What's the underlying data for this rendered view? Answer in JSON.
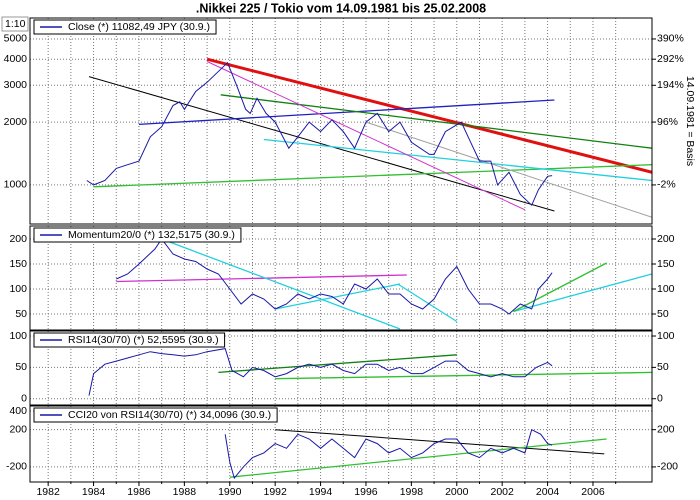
{
  "title": ".Nikkei 225 / Tokio vom 14.09.1981 bis 25.02.2008",
  "x_axis": {
    "xlim": [
      1981.2,
      2008.6
    ],
    "xticks": [
      1982,
      1984,
      1986,
      1988,
      1990,
      1992,
      1994,
      1996,
      1998,
      2000,
      2002,
      2004,
      2006
    ],
    "xminor": [
      1983,
      1985,
      1987,
      1989,
      1991,
      1993,
      1995,
      1997,
      1999,
      2001,
      2003,
      2005,
      2007
    ],
    "grid": true
  },
  "chart_data": [
    {
      "type": "line",
      "log_scale": true,
      "scale_note": "1:10",
      "right_axis_label": "14.09.1981 = Basis",
      "ylim": [
        650,
        6300
      ],
      "yticks": [
        1000,
        2000,
        3000,
        4000,
        5000
      ],
      "right_ticks": [
        {
          "value": 1000,
          "label": "-2%"
        },
        {
          "value": 2000,
          "label": "96%"
        },
        {
          "value": 3000,
          "label": "194%"
        },
        {
          "value": 4000,
          "label": "292%"
        },
        {
          "value": 5000,
          "label": "390%"
        }
      ],
      "series": [
        {
          "name": "Close (*) 11082,49 JPY (30.9.)",
          "color": "#1818a8",
          "x": [
            1983.7,
            1984.0,
            1984.5,
            1985.0,
            1985.5,
            1986.0,
            1986.5,
            1987.0,
            1987.5,
            1987.8,
            1988.0,
            1988.5,
            1989.0,
            1989.9,
            1990.3,
            1990.7,
            1990.9,
            1991.2,
            1991.6,
            1992.0,
            1992.6,
            1993.0,
            1993.5,
            1994.0,
            1994.5,
            1995.0,
            1995.5,
            1996.0,
            1996.5,
            1997.0,
            1997.5,
            1998.0,
            1998.8,
            1999.0,
            1999.5,
            2000.2,
            2000.5,
            2001.0,
            2001.5,
            2001.8,
            2002.3,
            2002.8,
            2003.3,
            2003.6,
            2004.0,
            2004.2
          ],
          "values": [
            1050,
            1000,
            1050,
            1200,
            1250,
            1300,
            1700,
            1900,
            2400,
            2500,
            2300,
            2800,
            3100,
            3850,
            3000,
            2300,
            2200,
            2600,
            2200,
            2000,
            1500,
            1700,
            2000,
            1800,
            2050,
            1800,
            1500,
            2000,
            2200,
            1800,
            2000,
            1600,
            1400,
            1400,
            1800,
            2000,
            1700,
            1300,
            1300,
            1000,
            1150,
            900,
            800,
            950,
            1100,
            1108.249
          ]
        }
      ],
      "trendlines": [
        {
          "color": "#e01010",
          "width": 3,
          "x": [
            1989.0,
            2008.6
          ],
          "values": [
            4000,
            1150
          ]
        },
        {
          "color": "#000000",
          "width": 1,
          "x": [
            1983.8,
            2004.3
          ],
          "values": [
            3300,
            750
          ]
        },
        {
          "color": "#2020c0",
          "width": 1.3,
          "x": [
            1986.0,
            2004.3
          ],
          "values": [
            1950,
            2550
          ]
        },
        {
          "color": "#30c030",
          "width": 1.3,
          "x": [
            1984.0,
            2008.6
          ],
          "values": [
            980,
            1250
          ]
        },
        {
          "color": "#108010",
          "width": 1.3,
          "x": [
            1989.6,
            2008.6
          ],
          "values": [
            2700,
            1500
          ]
        },
        {
          "color": "#20d0e0",
          "width": 1.3,
          "x": [
            1991.5,
            2008.6
          ],
          "values": [
            1650,
            1050
          ]
        },
        {
          "color": "#d030d0",
          "width": 1,
          "x": [
            1989.0,
            2003.0
          ],
          "values": [
            3900,
            760
          ]
        },
        {
          "color": "#a0a0a0",
          "width": 1,
          "x": [
            1996.0,
            2008.6
          ],
          "values": [
            2000,
            700
          ]
        }
      ]
    },
    {
      "type": "line",
      "ylim": [
        18,
        226
      ],
      "yticks": [
        50,
        100,
        150,
        200
      ],
      "right_ticks": [
        50,
        100,
        150,
        200
      ],
      "series": [
        {
          "name": "Momentum20/0 (*) 132,5175 (30.9.)",
          "color": "#1818a8",
          "x": [
            1985.0,
            1985.5,
            1986.0,
            1986.7,
            1987.0,
            1987.5,
            1988.0,
            1988.5,
            1989.0,
            1989.5,
            1990.0,
            1990.5,
            1991.0,
            1991.5,
            1992.0,
            1992.5,
            1993.0,
            1993.5,
            1994.0,
            1994.5,
            1995.0,
            1995.5,
            1996.0,
            1996.5,
            1997.0,
            1997.5,
            1998.0,
            1998.5,
            1999.0,
            1999.5,
            2000.0,
            2000.5,
            2001.0,
            2001.5,
            2002.0,
            2002.3,
            2002.8,
            2003.3,
            2003.6,
            2004.0,
            2004.2
          ],
          "values": [
            120,
            130,
            150,
            180,
            200,
            170,
            160,
            155,
            140,
            130,
            100,
            70,
            90,
            80,
            60,
            70,
            90,
            80,
            90,
            85,
            70,
            110,
            100,
            120,
            90,
            90,
            70,
            60,
            80,
            120,
            145,
            100,
            70,
            70,
            60,
            50,
            70,
            60,
            100,
            120,
            132.5175
          ]
        }
      ],
      "trendlines": [
        {
          "color": "#d030d0",
          "width": 1.3,
          "x": [
            1985.0,
            1997.8
          ],
          "values": [
            115,
            128
          ]
        },
        {
          "color": "#20d0e0",
          "width": 1.3,
          "x": [
            1987.0,
            1997.5
          ],
          "values": [
            200,
            20
          ]
        },
        {
          "color": "#20d0e0",
          "width": 1.3,
          "x": [
            1992.0,
            1997.5
          ],
          "values": [
            60,
            110
          ]
        },
        {
          "color": "#20d0e0",
          "width": 1.3,
          "x": [
            1997.4,
            2000.0
          ],
          "values": [
            110,
            35
          ]
        },
        {
          "color": "#20d0e0",
          "width": 1.3,
          "x": [
            2002.5,
            2008.6
          ],
          "values": [
            55,
            130
          ]
        },
        {
          "color": "#30c030",
          "width": 1.3,
          "x": [
            2002.5,
            2006.6
          ],
          "values": [
            55,
            152
          ]
        }
      ]
    },
    {
      "type": "line",
      "ylim": [
        -10,
        108
      ],
      "yticks": [
        0,
        50,
        100
      ],
      "right_ticks": [
        0,
        50,
        100
      ],
      "series": [
        {
          "name": "RSI14(30/70) (*) 52,5595 (30.9.)",
          "color": "#1818a8",
          "x": [
            1983.8,
            1984.0,
            1984.5,
            1985.0,
            1985.5,
            1986.0,
            1986.5,
            1987.0,
            1987.5,
            1988.0,
            1988.5,
            1989.0,
            1989.8,
            1990.1,
            1990.6,
            1991.0,
            1991.5,
            1992.0,
            1992.5,
            1993.0,
            1993.5,
            1994.0,
            1994.5,
            1995.0,
            1995.5,
            1996.0,
            1996.5,
            1997.0,
            1997.5,
            1998.0,
            1998.5,
            1999.0,
            1999.5,
            2000.0,
            2000.5,
            2001.0,
            2001.5,
            2002.0,
            2002.5,
            2003.0,
            2003.5,
            2004.0,
            2004.2
          ],
          "values": [
            5,
            40,
            55,
            60,
            65,
            70,
            75,
            72,
            70,
            68,
            70,
            75,
            80,
            45,
            35,
            50,
            45,
            35,
            40,
            50,
            55,
            50,
            55,
            45,
            40,
            55,
            55,
            45,
            50,
            40,
            40,
            50,
            60,
            60,
            45,
            40,
            35,
            40,
            35,
            35,
            50,
            58,
            52.5595
          ]
        }
      ],
      "trendlines": [
        {
          "color": "#108010",
          "width": 1.3,
          "x": [
            1989.5,
            2000.0
          ],
          "values": [
            42,
            70
          ]
        },
        {
          "color": "#30c030",
          "width": 1.3,
          "x": [
            1992.0,
            2008.6
          ],
          "values": [
            32,
            42
          ]
        }
      ]
    },
    {
      "type": "line",
      "ylim": [
        -362,
        454
      ],
      "yticks": [
        -200,
        200,
        400
      ],
      "right_ticks": [
        -200,
        200
      ],
      "series": [
        {
          "name": "CCI20 von RSI14(30/70) (*) 34,0096 (30.9.)",
          "color": "#1818a8",
          "x": [
            1989.8,
            1990.0,
            1990.2,
            1990.6,
            1991.0,
            1991.5,
            1992.0,
            1992.5,
            1993.0,
            1993.5,
            1994.0,
            1994.5,
            1995.0,
            1995.5,
            1996.0,
            1996.5,
            1997.0,
            1997.5,
            1998.0,
            1998.5,
            1999.0,
            1999.5,
            2000.0,
            2000.5,
            2001.0,
            2001.5,
            2002.0,
            2002.5,
            2003.0,
            2003.3,
            2003.7,
            2004.0,
            2004.2
          ],
          "values": [
            150,
            -150,
            -320,
            -200,
            -100,
            -50,
            50,
            0,
            150,
            100,
            0,
            100,
            0,
            -100,
            100,
            50,
            -50,
            0,
            -100,
            -50,
            50,
            100,
            100,
            -50,
            -100,
            0,
            -50,
            0,
            -50,
            200,
            150,
            50,
            34.0096
          ]
        }
      ],
      "trendlines": [
        {
          "color": "#000000",
          "width": 1,
          "x": [
            1992.0,
            2006.5
          ],
          "values": [
            200,
            -60
          ]
        },
        {
          "color": "#30c030",
          "width": 1.3,
          "x": [
            1990.0,
            2006.6
          ],
          "values": [
            -310,
            100
          ]
        }
      ]
    }
  ]
}
